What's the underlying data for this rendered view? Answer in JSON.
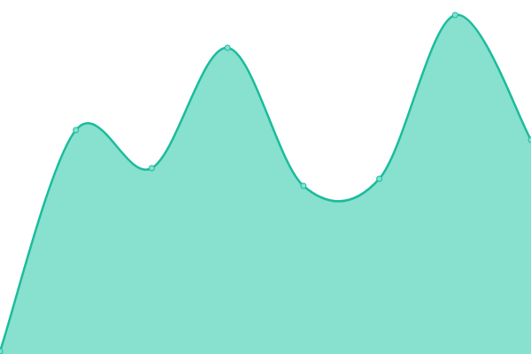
{
  "chart_data": {
    "type": "area",
    "values": [
      3,
      253,
      210,
      346,
      190,
      198,
      383,
      242
    ],
    "ylim": [
      0,
      400
    ],
    "color": "#1abc9c",
    "fill": "#88e0cf",
    "smooth": true,
    "markers": true
  }
}
